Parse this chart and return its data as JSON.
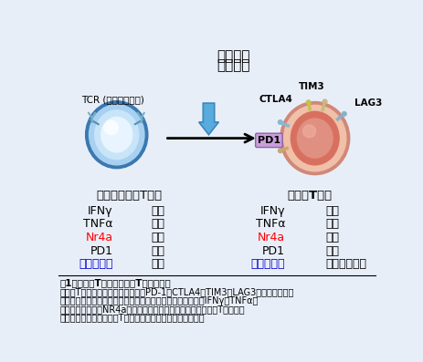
{
  "title_top_line1": "がん抗原",
  "title_top_line2": "腫瑞環境",
  "left_cell_label": "TCR (ト細胞受容体)",
  "left_table_header": "腫瑞内活性化T細胞",
  "right_table_header": "疲弊化T細胞",
  "left_rows": [
    {
      "label": "IFNγ",
      "value": "高い",
      "label_color": "#000000"
    },
    {
      "label": "TNFα",
      "value": "高い",
      "label_color": "#000000"
    },
    {
      "label": "Nr4a",
      "value": "低い",
      "label_color": "#FF0000"
    },
    {
      "label": "PD1",
      "value": "低い",
      "label_color": "#000000"
    },
    {
      "label": "腫瑞攻撃能",
      "value": "高い",
      "label_color": "#0000CC"
    }
  ],
  "right_rows": [
    {
      "label": "IFNγ",
      "value": "低い",
      "label_color": "#000000"
    },
    {
      "label": "TNFα",
      "value": "低い",
      "label_color": "#000000"
    },
    {
      "label": "Nr4a",
      "value": "高い",
      "label_color": "#FF0000"
    },
    {
      "label": "PD1",
      "value": "高い",
      "label_color": "#000000"
    },
    {
      "label": "腫瑞攻撃能",
      "value": "ほとんどない",
      "label_color": "#0000CC"
    }
  ],
  "caption_title": "図1　活性化T細胞と疲弊化T細胞の違い",
  "caption_lines": [
    "疲弊化T細胞では抑制性分子であるPD-1、CTLA4、TIM3、LAG3などのチェック",
    "ポイント分子の発現が高く、抗腫瑞性のサイトカインであるIFNγやTNFαの",
    "発現が低い。またNR4a転写因子は発現が高い。よって活性化T細胞は抗",
    "腫瑞能が高いが、疲弊化T細胞は腫瑞攻撃力が極めて低い。"
  ],
  "bg_color": "#e8eef8",
  "label_ctla4": "CTLA4",
  "label_tim3": "TIM3",
  "label_lag3": "LAG3",
  "label_pd1": "PD1"
}
